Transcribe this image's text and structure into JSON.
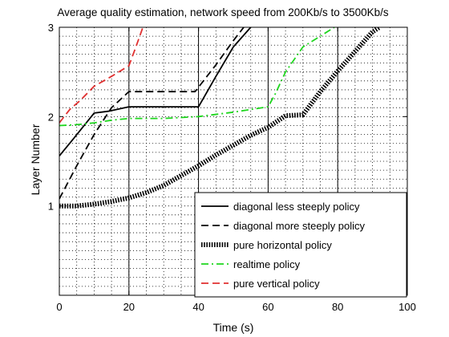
{
  "chart_data": {
    "type": "line",
    "title": "Average quality estimation, network speed from 200Kb/s to 3500Kb/s",
    "xlabel": "Time (s)",
    "ylabel": "Layer Number",
    "xlim": [
      0,
      100
    ],
    "ylim": [
      0,
      3
    ],
    "xticks": [
      "0",
      "20",
      "40",
      "60",
      "80",
      "100"
    ],
    "yticks": [
      "1",
      "2",
      "3"
    ],
    "xtick_values": [
      0,
      20,
      40,
      60,
      80,
      100
    ],
    "ytick_values": [
      1,
      2,
      3
    ],
    "grid": "dotted",
    "major_vlines": [
      20,
      40,
      60,
      80
    ],
    "legend_position": "lower-right",
    "series": [
      {
        "name": "diagonal less steeply policy",
        "color": "#000000",
        "style": "solid",
        "x": [
          0,
          4,
          10,
          14,
          20,
          30,
          40,
          45,
          50,
          55
        ],
        "y": [
          1.56,
          1.75,
          2.04,
          2.06,
          2.11,
          2.11,
          2.11,
          2.45,
          2.78,
          3.0
        ]
      },
      {
        "name": "diagonal more steeply policy",
        "color": "#000000",
        "style": "dashed",
        "x": [
          0,
          5,
          10,
          15,
          20,
          30,
          39,
          45,
          50,
          53
        ],
        "y": [
          1.08,
          1.45,
          1.8,
          2.1,
          2.28,
          2.28,
          2.28,
          2.58,
          2.85,
          3.0
        ]
      },
      {
        "name": "pure horizontal policy",
        "color": "#000000",
        "style": "thick-dotted",
        "x": [
          0,
          5,
          10,
          15,
          20,
          25,
          30,
          35,
          40,
          45,
          50,
          55,
          60,
          65,
          70,
          75,
          80,
          85,
          90,
          92
        ],
        "y": [
          1.0,
          1.0,
          1.02,
          1.05,
          1.09,
          1.15,
          1.23,
          1.34,
          1.45,
          1.57,
          1.68,
          1.79,
          1.88,
          2.01,
          2.02,
          2.28,
          2.51,
          2.73,
          2.95,
          3.0
        ]
      },
      {
        "name": "realtime policy",
        "color": "#1ed61e",
        "style": "dash-dot",
        "x": [
          0,
          5,
          10,
          15,
          20,
          30,
          40,
          50,
          60,
          62,
          65,
          70,
          75,
          79
        ],
        "y": [
          1.9,
          1.91,
          1.93,
          1.96,
          1.98,
          1.98,
          2.0,
          2.05,
          2.11,
          2.25,
          2.5,
          2.78,
          2.9,
          3.0
        ]
      },
      {
        "name": "pure vertical policy",
        "color": "#e03030",
        "style": "dashed",
        "x": [
          0,
          3,
          6,
          10,
          15,
          20,
          22,
          24
        ],
        "y": [
          1.93,
          2.08,
          2.18,
          2.34,
          2.45,
          2.57,
          2.78,
          3.0
        ]
      }
    ]
  }
}
